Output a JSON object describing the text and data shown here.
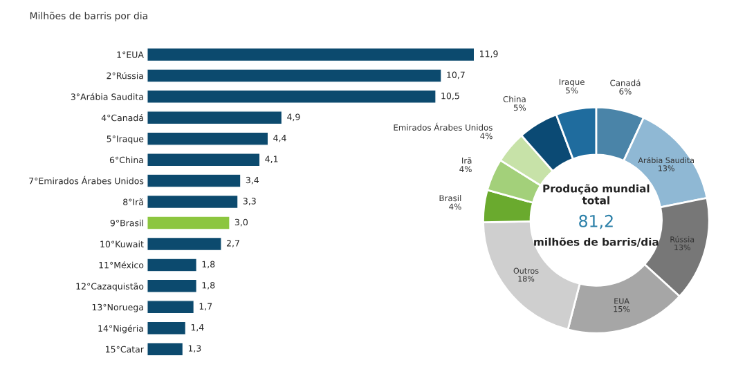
{
  "chart_data": [
    {
      "type": "bar",
      "orientation": "horizontal",
      "subtitle": "Milhões de barris por dia",
      "tick_labels": "y",
      "value_labels": [
        "11,9",
        "10,7",
        "10,5",
        "4,9",
        "4,4",
        "4,1",
        "3,4",
        "3,3",
        "3,0",
        "2,7",
        "1,8",
        "1,8",
        "1,7",
        "1,4",
        "1,3"
      ],
      "categories": [
        "1°EUA",
        "2°Rússia",
        "3°Arábia Saudita",
        "4°Canadá",
        "5°Iraque",
        "6°China",
        "7°Emirados Árabes Unidos",
        "8°Irã",
        "9°Brasil",
        "10°Kuwait",
        "11°México",
        "12°Cazaquistão",
        "13°Noruega",
        "14°Nigéria",
        "15°Catar"
      ],
      "values": [
        11.9,
        10.7,
        10.5,
        4.9,
        4.4,
        4.1,
        3.4,
        3.3,
        3.0,
        2.7,
        1.8,
        1.8,
        1.7,
        1.4,
        1.3
      ],
      "colors": [
        "#0c4a6e",
        "#0c4a6e",
        "#0c4a6e",
        "#0c4a6e",
        "#0c4a6e",
        "#0c4a6e",
        "#0c4a6e",
        "#0c4a6e",
        "#8cc63f",
        "#0c4a6e",
        "#0c4a6e",
        "#0c4a6e",
        "#0c4a6e",
        "#0c4a6e",
        "#0c4a6e"
      ]
    },
    {
      "type": "donut",
      "categories": [
        "Canadá",
        "Arábia Saudita",
        "Rússia",
        "EUA",
        "Outros",
        "Brasil",
        "Irã",
        "Emirados Árabes Unidos",
        "China",
        "Iraque"
      ],
      "values": [
        6,
        13,
        13,
        15,
        18,
        4,
        4,
        4,
        5,
        5
      ],
      "value_labels": [
        "6%",
        "13%",
        "13%",
        "15%",
        "18%",
        "4%",
        "4%",
        "4%",
        "5%",
        "5%"
      ],
      "colors": [
        "#4a84a8",
        "#8fb8d4",
        "#777777",
        "#a6a6a6",
        "#cfcfcf",
        "#6aaa2e",
        "#a3d07a",
        "#c7e2a8",
        "#0b4a74",
        "#1f6c9e"
      ],
      "annotations": [
        "Produção mundial\ntotal",
        "81,2",
        "milhões de barris/dia"
      ]
    }
  ]
}
